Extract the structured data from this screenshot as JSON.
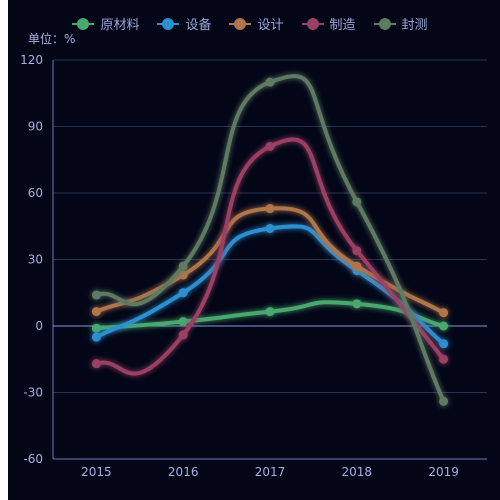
{
  "unit_label": "单位：%",
  "colors": {
    "background": "#020617",
    "grid": "#2b3155",
    "axis": "#6f78b5",
    "zero_line": "#8f94d8"
  },
  "chart_data": {
    "type": "line",
    "smooth": true,
    "categories": [
      "2015",
      "2016",
      "2017",
      "2018",
      "2019"
    ],
    "ylim": [
      -60,
      120
    ],
    "yticks": [
      120,
      90,
      60,
      30,
      0,
      -30,
      -60
    ],
    "grid": "horizontal",
    "legend_position": "top-center",
    "series": [
      {
        "name": "原材料",
        "color": "#4aa86e",
        "values": [
          -1,
          2,
          6.5,
          10,
          0
        ]
      },
      {
        "name": "设备",
        "color": "#2f8fd0",
        "values": [
          -5,
          15,
          44,
          25,
          -8
        ]
      },
      {
        "name": "设计",
        "color": "#b0754c",
        "values": [
          6.5,
          23,
          53,
          27,
          6
        ]
      },
      {
        "name": "制造",
        "color": "#9a3f62",
        "values": [
          -17,
          -4,
          81,
          34,
          -15
        ]
      },
      {
        "name": "封测",
        "color": "#5f7a63",
        "values": [
          14,
          27,
          110,
          56,
          -34
        ]
      }
    ]
  }
}
